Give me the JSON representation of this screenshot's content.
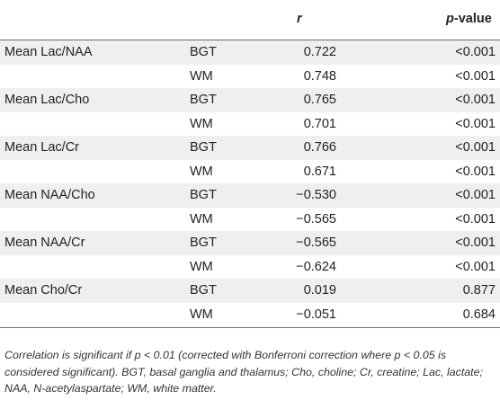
{
  "table": {
    "headers": {
      "r": "r",
      "p_value_prefix": "p",
      "p_value_suffix": "-value"
    },
    "rows": [
      {
        "label": "Mean Lac/NAA",
        "region": "BGT",
        "r": "0.722",
        "p": "<0.001"
      },
      {
        "label": "",
        "region": "WM",
        "r": "0.748",
        "p": "<0.001"
      },
      {
        "label": "Mean Lac/Cho",
        "region": "BGT",
        "r": "0.765",
        "p": "<0.001"
      },
      {
        "label": "",
        "region": "WM",
        "r": "0.701",
        "p": "<0.001"
      },
      {
        "label": "Mean Lac/Cr",
        "region": "BGT",
        "r": "0.766",
        "p": "<0.001"
      },
      {
        "label": "",
        "region": "WM",
        "r": "0.671",
        "p": "<0.001"
      },
      {
        "label": "Mean NAA/Cho",
        "region": "BGT",
        "r": "−0.530",
        "p": "<0.001"
      },
      {
        "label": "",
        "region": "WM",
        "r": "−0.565",
        "p": "<0.001"
      },
      {
        "label": "Mean NAA/Cr",
        "region": "BGT",
        "r": "−0.565",
        "p": "<0.001"
      },
      {
        "label": "",
        "region": "WM",
        "r": "−0.624",
        "p": "<0.001"
      },
      {
        "label": "Mean Cho/Cr",
        "region": "BGT",
        "r": "0.019",
        "p": "0.877"
      },
      {
        "label": "",
        "region": "WM",
        "r": "−0.051",
        "p": "0.684"
      }
    ]
  },
  "footnote": "Correlation is significant if p < 0.01 (corrected with Bonferroni correction where p < 0.05 is considered significant). BGT, basal ganglia and thalamus; Cho, choline; Cr, creatine; Lac, lactate; NAA, N-acetylaspartate; WM, white matter."
}
